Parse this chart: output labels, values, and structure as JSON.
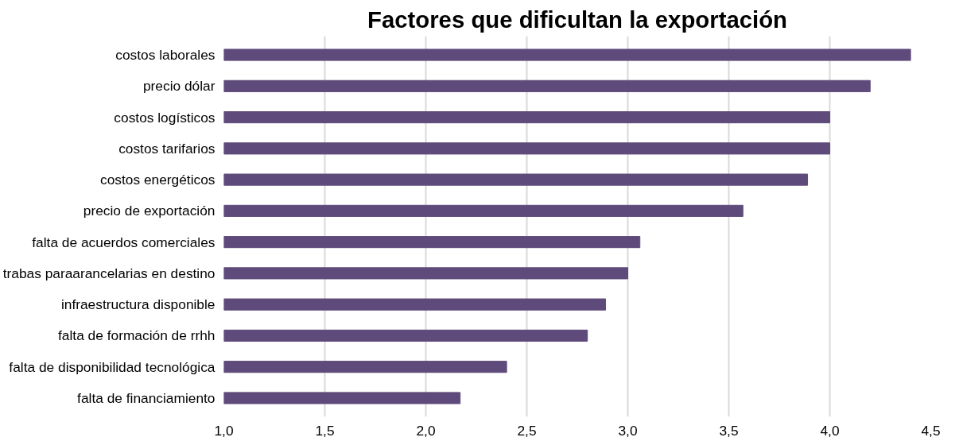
{
  "chart_data": {
    "type": "bar",
    "orientation": "horizontal",
    "title": "Factores que dificultan la exportación",
    "categories": [
      "costos laborales",
      "precio dólar",
      "costos logísticos",
      "costos tarifarios",
      "costos energéticos",
      "precio de exportación",
      "falta de acuerdos comerciales",
      "trabas paraarancelarias en destino",
      "infraestructura disponible",
      "falta de formación de rrhh",
      "falta de disponibilidad tecnológica",
      "falta de financiamiento"
    ],
    "values": [
      4.4,
      4.2,
      4.0,
      4.0,
      3.89,
      3.57,
      3.06,
      3.0,
      2.89,
      2.8,
      2.4,
      2.17
    ],
    "color": "#5f4b7b",
    "xlim": [
      1.0,
      4.5
    ],
    "xticks": [
      {
        "value": 1.0,
        "label": "1,0"
      },
      {
        "value": 1.5,
        "label": "1,5"
      },
      {
        "value": 2.0,
        "label": "2,0"
      },
      {
        "value": 2.5,
        "label": "2,5"
      },
      {
        "value": 3.0,
        "label": "3,0"
      },
      {
        "value": 3.5,
        "label": "3,5"
      },
      {
        "value": 4.0,
        "label": "4,0"
      },
      {
        "value": 4.5,
        "label": "4,5"
      }
    ],
    "grid": "x"
  }
}
